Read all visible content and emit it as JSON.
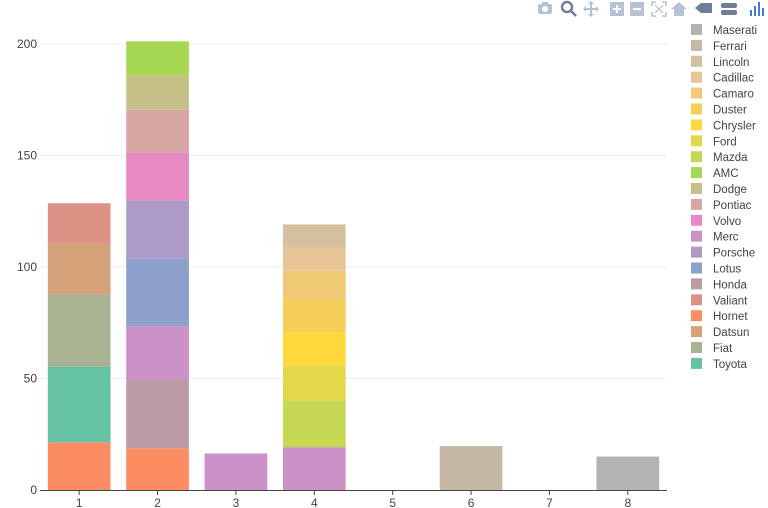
{
  "colors": {
    "Maserati": "#b3b3b3",
    "Ferrari": "#c5b8a5",
    "Lincoln": "#d6c09f",
    "Cadillac": "#e8c596",
    "Camaro": "#f0ca74",
    "Duster": "#f6cf58",
    "Chrysler": "#ffd93c",
    "Ford": "#e3d84c",
    "Mazda": "#c6d853",
    "AMC": "#a6d854",
    "Dodge": "#c4c088",
    "Pontiac": "#d8a6a4",
    "Volvo": "#e78ac3",
    "Merc": "#cc91c7",
    "Porsche": "#ae9ac8",
    "Lotus": "#8da0cb",
    "Honda": "#bc9ba4",
    "Valiant": "#dc9285",
    "Hornet": "#fc8d62",
    "Datsun": "#d6a27a",
    "Fiat": "#a9b292",
    "Toyota": "#66c2a5"
  },
  "modebar": {
    "icons": [
      "camera-icon",
      "zoom-icon",
      "pan-icon",
      "zoom-in-icon",
      "zoom-out-icon",
      "autoscale-icon",
      "home-icon",
      "hover-closest-icon",
      "hover-compare-icon",
      "plotly-logo-icon"
    ]
  },
  "chart_data": {
    "type": "bar",
    "barmode": "stack",
    "categories": [
      "1",
      "2",
      "3",
      "4",
      "5",
      "6",
      "7",
      "8"
    ],
    "ylim": [
      0,
      200
    ],
    "yticks": [
      0,
      50,
      100,
      150,
      200
    ],
    "grid": true,
    "legend_position": "right",
    "series": [
      {
        "name": "Maserati",
        "values": [
          0,
          0,
          0,
          0,
          0,
          0,
          0,
          15
        ]
      },
      {
        "name": "Ferrari",
        "values": [
          0,
          0,
          0,
          0,
          0,
          19.7,
          0,
          0
        ]
      },
      {
        "name": "Lincoln",
        "values": [
          0,
          0,
          0,
          10.4,
          0,
          0,
          0,
          0
        ]
      },
      {
        "name": "Cadillac",
        "values": [
          0,
          0,
          0,
          10.4,
          0,
          0,
          0,
          0
        ]
      },
      {
        "name": "Camaro",
        "values": [
          0,
          0,
          0,
          13.3,
          0,
          0,
          0,
          0
        ]
      },
      {
        "name": "Duster",
        "values": [
          0,
          0,
          0,
          14.3,
          0,
          0,
          0,
          0
        ]
      },
      {
        "name": "Chrysler",
        "values": [
          0,
          0,
          0,
          14.7,
          0,
          0,
          0,
          0
        ]
      },
      {
        "name": "Ford",
        "values": [
          0,
          0,
          0,
          15.8,
          0,
          0,
          0,
          0
        ]
      },
      {
        "name": "Mazda",
        "values": [
          0,
          0,
          0,
          21,
          0,
          0,
          0,
          0
        ]
      },
      {
        "name": "AMC",
        "values": [
          0,
          15.2,
          0,
          0,
          0,
          0,
          0,
          0
        ]
      },
      {
        "name": "Dodge",
        "values": [
          0,
          15.5,
          0,
          0,
          0,
          0,
          0,
          0
        ]
      },
      {
        "name": "Pontiac",
        "values": [
          0,
          19.2,
          0,
          0,
          0,
          0,
          0,
          0
        ]
      },
      {
        "name": "Volvo",
        "values": [
          0,
          21.4,
          0,
          0,
          0,
          0,
          0,
          0
        ]
      },
      {
        "name": "Merc",
        "values": [
          0,
          24.4,
          16.4,
          19.2,
          0,
          0,
          0,
          0
        ]
      },
      {
        "name": "Porsche",
        "values": [
          0,
          26,
          0,
          0,
          0,
          0,
          0,
          0
        ]
      },
      {
        "name": "Lotus",
        "values": [
          0,
          30.4,
          0,
          0,
          0,
          0,
          0,
          0
        ]
      },
      {
        "name": "Honda",
        "values": [
          0,
          30.4,
          0,
          0,
          0,
          0,
          0,
          0
        ]
      },
      {
        "name": "Valiant",
        "values": [
          18.1,
          0,
          0,
          0,
          0,
          0,
          0,
          0
        ]
      },
      {
        "name": "Hornet",
        "values": [
          21.4,
          18.7,
          0,
          0,
          0,
          0,
          0,
          0
        ]
      },
      {
        "name": "Datsun",
        "values": [
          22.8,
          0,
          0,
          0,
          0,
          0,
          0,
          0
        ]
      },
      {
        "name": "Fiat",
        "values": [
          32.4,
          0,
          0,
          0,
          0,
          0,
          0,
          0
        ]
      },
      {
        "name": "Toyota",
        "values": [
          33.9,
          0,
          0,
          0,
          0,
          0,
          0,
          0
        ]
      }
    ],
    "legend_order": [
      "Maserati",
      "Ferrari",
      "Lincoln",
      "Cadillac",
      "Camaro",
      "Duster",
      "Chrysler",
      "Ford",
      "Mazda",
      "AMC",
      "Dodge",
      "Pontiac",
      "Volvo",
      "Merc",
      "Porsche",
      "Lotus",
      "Honda",
      "Valiant",
      "Hornet",
      "Datsun",
      "Fiat",
      "Toyota"
    ],
    "stack_order_bottom_to_top": [
      "Hornet",
      "Toyota",
      "Fiat",
      "Datsun",
      "Valiant",
      "Honda",
      "Merc",
      "Lotus",
      "Porsche",
      "Volvo",
      "Pontiac",
      "Dodge",
      "AMC",
      "Mazda",
      "Ford",
      "Chrysler",
      "Duster",
      "Camaro",
      "Cadillac",
      "Lincoln",
      "Ferrari",
      "Maserati"
    ]
  }
}
